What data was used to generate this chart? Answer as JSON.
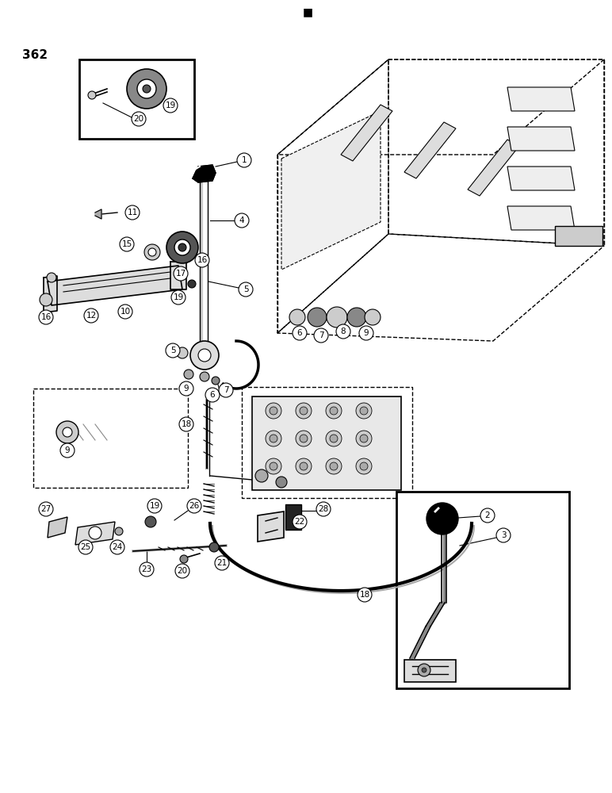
{
  "page_number": "362",
  "bg_color": "#ffffff",
  "fig_width": 7.72,
  "fig_height": 10.0,
  "dpi": 100
}
